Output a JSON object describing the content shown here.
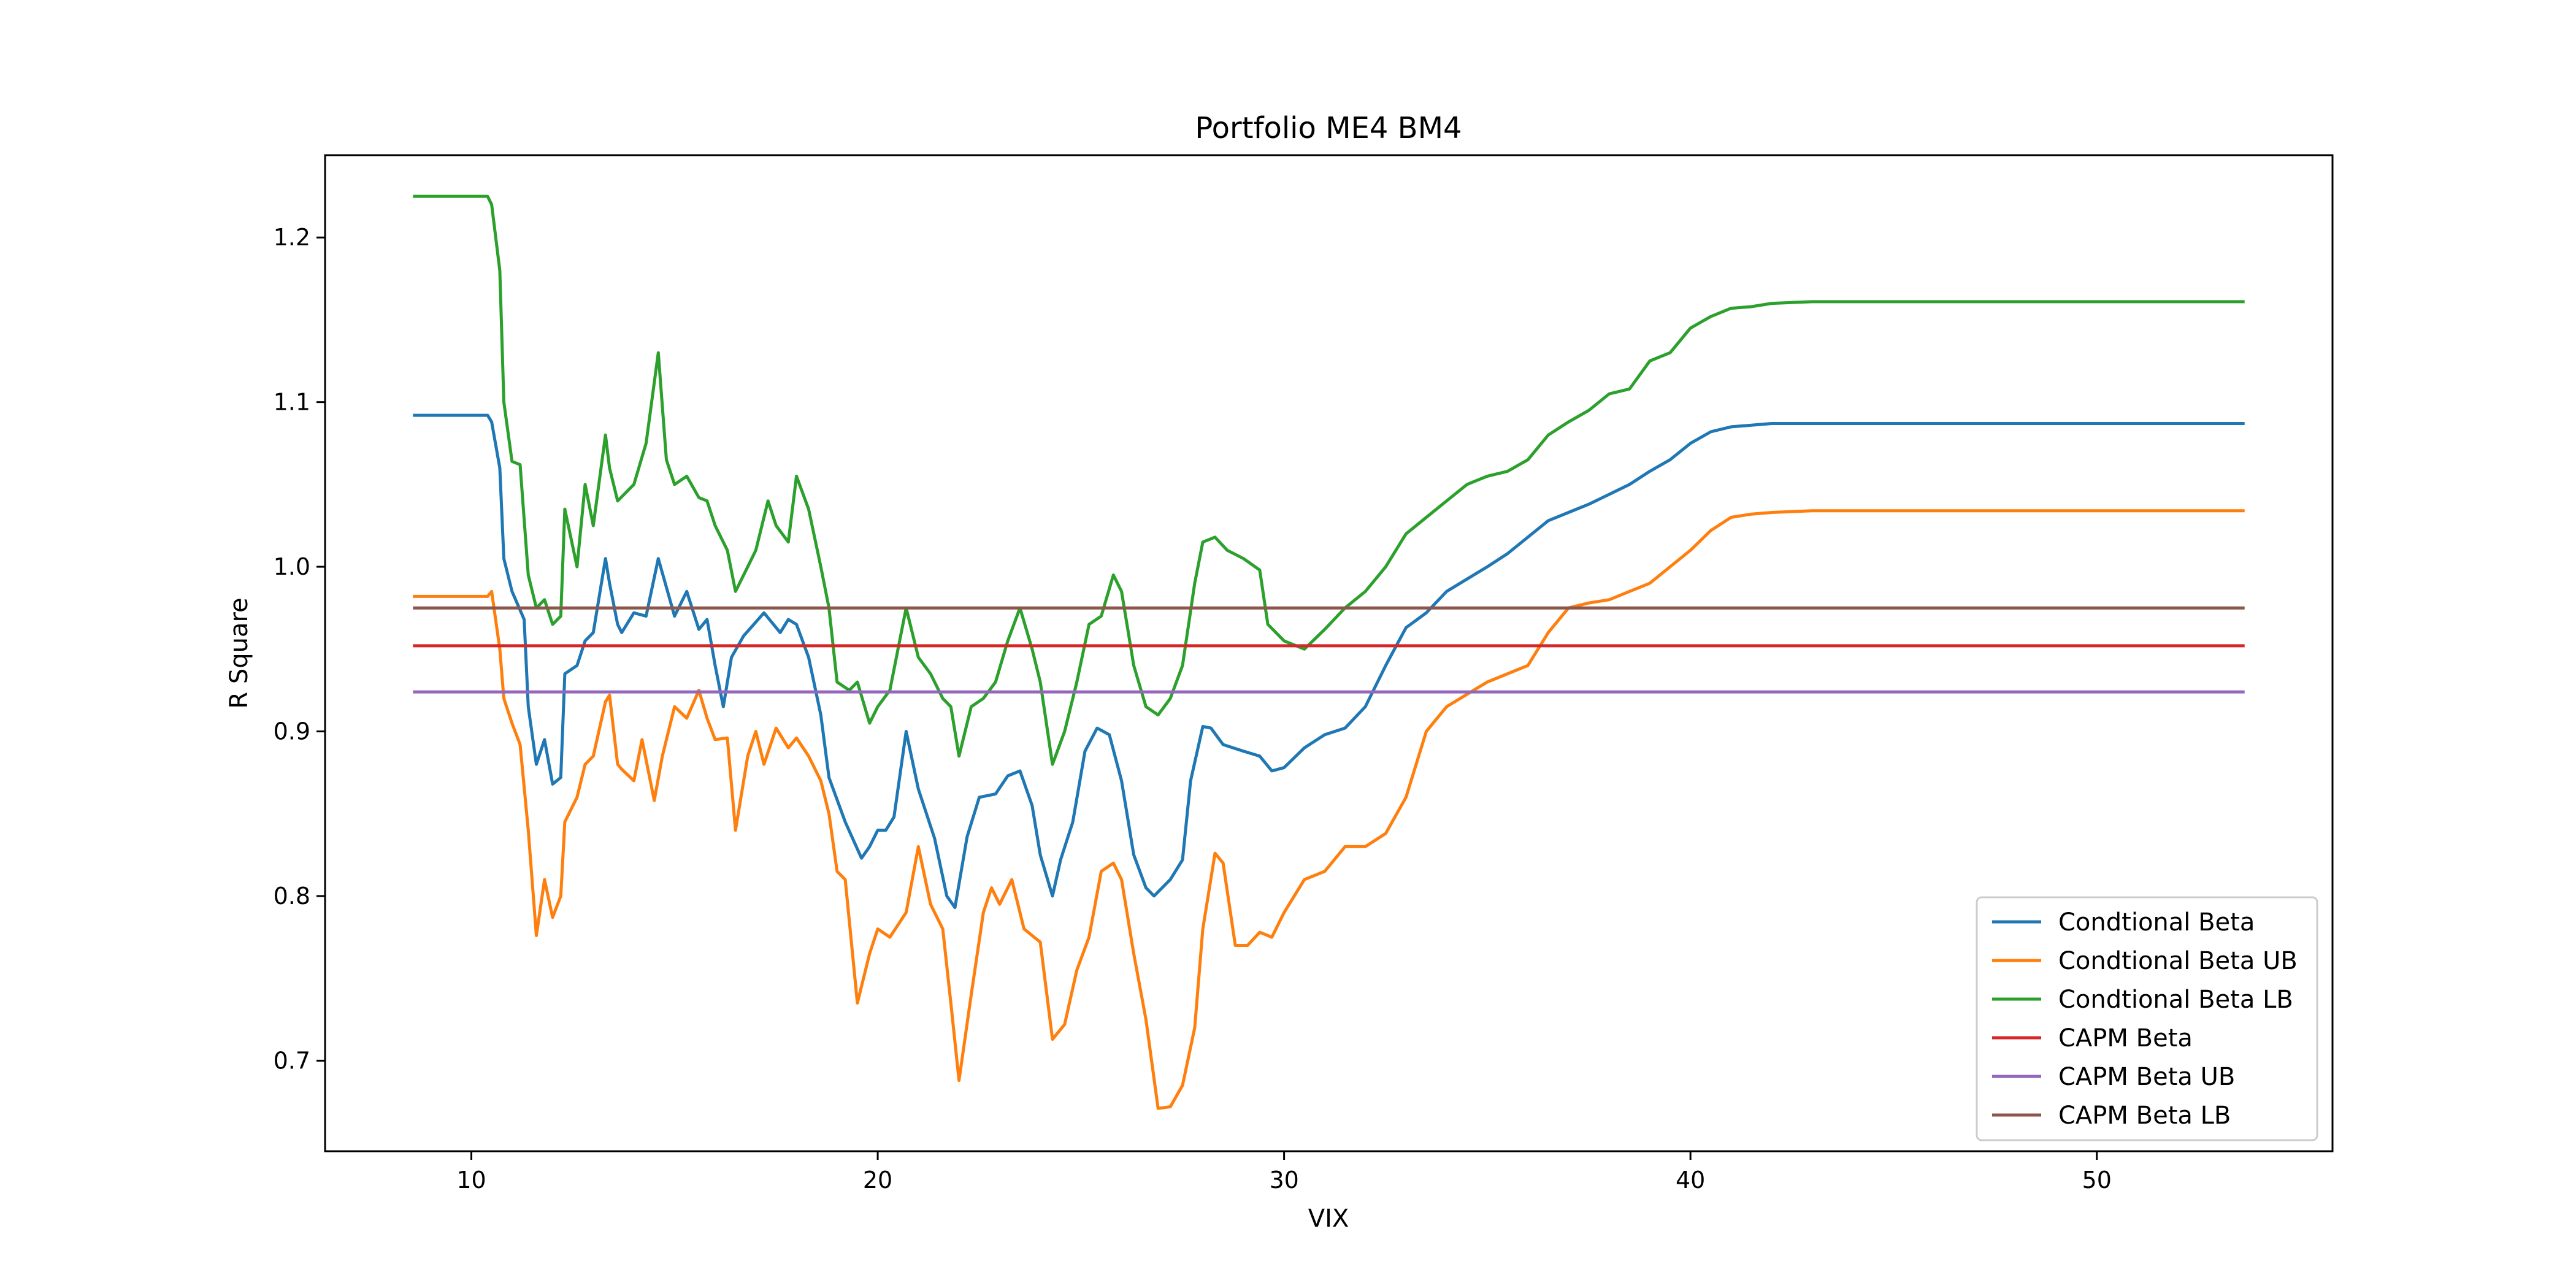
{
  "chart_data": {
    "type": "line",
    "title": "Portfolio ME4 BM4",
    "xlabel": "VIX",
    "ylabel": "R Square",
    "xlim": [
      6.4,
      55.8
    ],
    "ylim": [
      0.645,
      1.25
    ],
    "xticks": [
      10,
      20,
      30,
      40,
      50
    ],
    "yticks": [
      0.7,
      0.8,
      0.9,
      1.0,
      1.1,
      1.2
    ],
    "xtick_labels": [
      "10",
      "20",
      "30",
      "40",
      "50"
    ],
    "ytick_labels": [
      "0.7",
      "0.8",
      "0.9",
      "1.0",
      "1.1",
      "1.2"
    ],
    "grid": false,
    "legend_position": "lower-right",
    "series": [
      {
        "name": "Condtional Beta",
        "color": "#1f77b4",
        "x": [
          8.6,
          9.5,
          10.4,
          10.5,
          10.7,
          10.8,
          11.0,
          11.3,
          11.4,
          11.6,
          11.8,
          12.0,
          12.2,
          12.3,
          12.6,
          12.8,
          13.0,
          13.3,
          13.4,
          13.6,
          13.7,
          14.0,
          14.3,
          14.6,
          15.0,
          15.3,
          15.6,
          15.8,
          16.0,
          16.2,
          16.4,
          16.7,
          17.2,
          17.6,
          17.8,
          18.0,
          18.3,
          18.6,
          18.8,
          19.2,
          19.6,
          19.8,
          20.0,
          20.2,
          20.4,
          20.7,
          21.0,
          21.4,
          21.7,
          21.9,
          22.2,
          22.5,
          22.9,
          23.2,
          23.5,
          23.8,
          24.0,
          24.3,
          24.5,
          24.8,
          25.1,
          25.4,
          25.7,
          26.0,
          26.3,
          26.6,
          26.8,
          27.2,
          27.5,
          27.7,
          28.0,
          28.2,
          28.5,
          29.0,
          29.4,
          29.7,
          30.0,
          30.5,
          31.0,
          31.5,
          32.0,
          32.5,
          33.0,
          33.5,
          34.0,
          35.0,
          35.5,
          36.0,
          36.5,
          37.0,
          37.5,
          38.0,
          38.5,
          39.0,
          39.5,
          40.0,
          40.5,
          41.0,
          41.5,
          42.0,
          43.0,
          45.0,
          50.0,
          53.6
        ],
        "values": [
          1.092,
          1.092,
          1.092,
          1.088,
          1.06,
          1.005,
          0.985,
          0.968,
          0.915,
          0.88,
          0.895,
          0.868,
          0.872,
          0.935,
          0.94,
          0.955,
          0.96,
          1.005,
          0.99,
          0.965,
          0.96,
          0.972,
          0.97,
          1.005,
          0.97,
          0.985,
          0.962,
          0.968,
          0.94,
          0.915,
          0.945,
          0.958,
          0.972,
          0.96,
          0.968,
          0.965,
          0.945,
          0.91,
          0.872,
          0.845,
          0.823,
          0.83,
          0.84,
          0.84,
          0.848,
          0.9,
          0.865,
          0.835,
          0.8,
          0.793,
          0.836,
          0.86,
          0.862,
          0.873,
          0.876,
          0.855,
          0.825,
          0.8,
          0.822,
          0.845,
          0.888,
          0.902,
          0.898,
          0.87,
          0.825,
          0.805,
          0.8,
          0.81,
          0.822,
          0.87,
          0.903,
          0.902,
          0.892,
          0.888,
          0.885,
          0.876,
          0.878,
          0.89,
          0.898,
          0.902,
          0.915,
          0.94,
          0.963,
          0.972,
          0.985,
          1.0,
          1.008,
          1.018,
          1.028,
          1.033,
          1.038,
          1.044,
          1.05,
          1.058,
          1.065,
          1.075,
          1.082,
          1.085,
          1.086,
          1.087,
          1.087,
          1.087,
          1.087,
          1.087
        ]
      },
      {
        "name": "Condtional Beta UB",
        "color": "#ff7f0e",
        "x": [
          8.6,
          9.5,
          10.4,
          10.5,
          10.7,
          10.8,
          11.0,
          11.2,
          11.4,
          11.6,
          11.8,
          12.0,
          12.2,
          12.3,
          12.6,
          12.8,
          13.0,
          13.3,
          13.4,
          13.6,
          13.7,
          14.0,
          14.2,
          14.5,
          14.7,
          15.0,
          15.3,
          15.6,
          15.8,
          16.0,
          16.3,
          16.5,
          16.8,
          17.0,
          17.2,
          17.5,
          17.8,
          18.0,
          18.3,
          18.6,
          18.8,
          19.0,
          19.2,
          19.5,
          19.8,
          20.0,
          20.3,
          20.7,
          21.0,
          21.3,
          21.6,
          21.8,
          22.0,
          22.3,
          22.6,
          22.8,
          23.0,
          23.3,
          23.6,
          24.0,
          24.3,
          24.6,
          24.9,
          25.2,
          25.5,
          25.8,
          26.0,
          26.3,
          26.6,
          26.9,
          27.2,
          27.5,
          27.8,
          28.0,
          28.3,
          28.5,
          28.8,
          29.1,
          29.4,
          29.7,
          30.0,
          30.5,
          31.0,
          31.5,
          32.0,
          32.5,
          33.0,
          33.5,
          34.0,
          35.0,
          36.0,
          36.5,
          37.0,
          37.5,
          38.0,
          38.5,
          39.0,
          39.5,
          40.0,
          40.5,
          41.0,
          41.5,
          42.0,
          43.0,
          45.0,
          50.0,
          53.6
        ],
        "values": [
          0.982,
          0.982,
          0.982,
          0.985,
          0.95,
          0.92,
          0.905,
          0.892,
          0.84,
          0.776,
          0.81,
          0.787,
          0.8,
          0.845,
          0.86,
          0.88,
          0.885,
          0.918,
          0.922,
          0.88,
          0.877,
          0.87,
          0.895,
          0.858,
          0.885,
          0.915,
          0.908,
          0.925,
          0.908,
          0.895,
          0.896,
          0.84,
          0.885,
          0.9,
          0.88,
          0.902,
          0.89,
          0.896,
          0.885,
          0.87,
          0.85,
          0.815,
          0.81,
          0.735,
          0.765,
          0.78,
          0.775,
          0.79,
          0.83,
          0.795,
          0.78,
          0.735,
          0.688,
          0.74,
          0.79,
          0.805,
          0.795,
          0.81,
          0.78,
          0.772,
          0.713,
          0.722,
          0.755,
          0.775,
          0.815,
          0.82,
          0.81,
          0.765,
          0.725,
          0.671,
          0.672,
          0.685,
          0.72,
          0.78,
          0.826,
          0.82,
          0.77,
          0.77,
          0.778,
          0.775,
          0.79,
          0.81,
          0.815,
          0.83,
          0.83,
          0.838,
          0.86,
          0.9,
          0.915,
          0.93,
          0.94,
          0.96,
          0.975,
          0.978,
          0.98,
          0.985,
          0.99,
          1.0,
          1.01,
          1.022,
          1.03,
          1.032,
          1.033,
          1.034,
          1.034,
          1.034,
          1.034
        ]
      },
      {
        "name": "Condtional Beta LB",
        "color": "#2ca02c",
        "x": [
          8.6,
          9.5,
          10.4,
          10.5,
          10.7,
          10.8,
          11.0,
          11.2,
          11.4,
          11.6,
          11.8,
          12.0,
          12.2,
          12.3,
          12.6,
          12.8,
          13.0,
          13.3,
          13.4,
          13.6,
          13.8,
          14.0,
          14.3,
          14.6,
          14.8,
          15.0,
          15.3,
          15.6,
          15.8,
          16.0,
          16.3,
          16.5,
          16.8,
          17.0,
          17.3,
          17.5,
          17.8,
          18.0,
          18.3,
          18.6,
          18.8,
          19.0,
          19.3,
          19.5,
          19.8,
          20.0,
          20.3,
          20.7,
          21.0,
          21.3,
          21.6,
          21.8,
          22.0,
          22.3,
          22.6,
          22.9,
          23.2,
          23.5,
          23.8,
          24.0,
          24.3,
          24.6,
          24.9,
          25.2,
          25.5,
          25.8,
          26.0,
          26.3,
          26.6,
          26.9,
          27.2,
          27.5,
          27.8,
          28.0,
          28.3,
          28.6,
          29.0,
          29.4,
          29.6,
          30.0,
          30.5,
          31.0,
          31.5,
          32.0,
          32.5,
          33.0,
          33.5,
          34.0,
          34.5,
          35.0,
          35.5,
          36.0,
          36.5,
          37.0,
          37.5,
          38.0,
          38.5,
          39.0,
          39.5,
          40.0,
          40.5,
          41.0,
          41.5,
          42.0,
          43.0,
          45.0,
          50.0,
          53.6
        ],
        "values": [
          1.225,
          1.225,
          1.225,
          1.22,
          1.18,
          1.1,
          1.064,
          1.062,
          0.995,
          0.975,
          0.98,
          0.965,
          0.97,
          1.035,
          1.0,
          1.05,
          1.025,
          1.08,
          1.06,
          1.04,
          1.045,
          1.05,
          1.075,
          1.13,
          1.065,
          1.05,
          1.055,
          1.042,
          1.04,
          1.025,
          1.01,
          0.985,
          1.0,
          1.01,
          1.04,
          1.025,
          1.015,
          1.055,
          1.035,
          1.0,
          0.975,
          0.93,
          0.925,
          0.93,
          0.905,
          0.915,
          0.925,
          0.975,
          0.945,
          0.935,
          0.92,
          0.915,
          0.885,
          0.915,
          0.92,
          0.93,
          0.955,
          0.975,
          0.95,
          0.93,
          0.88,
          0.9,
          0.93,
          0.965,
          0.97,
          0.995,
          0.985,
          0.94,
          0.915,
          0.91,
          0.92,
          0.94,
          0.99,
          1.015,
          1.018,
          1.01,
          1.005,
          0.998,
          0.965,
          0.955,
          0.95,
          0.962,
          0.975,
          0.985,
          1.0,
          1.02,
          1.03,
          1.04,
          1.05,
          1.055,
          1.058,
          1.065,
          1.08,
          1.088,
          1.095,
          1.105,
          1.108,
          1.125,
          1.13,
          1.145,
          1.152,
          1.157,
          1.158,
          1.16,
          1.161,
          1.161,
          1.161,
          1.161
        ]
      },
      {
        "name": "CAPM Beta",
        "color": "#d62728",
        "x": [
          8.6,
          53.6
        ],
        "values": [
          0.952,
          0.952
        ]
      },
      {
        "name": "CAPM Beta UB",
        "color": "#9467bd",
        "x": [
          8.6,
          53.6
        ],
        "values": [
          0.924,
          0.924
        ]
      },
      {
        "name": "CAPM Beta LB",
        "color": "#8c564b",
        "x": [
          8.6,
          53.6
        ],
        "values": [
          0.975,
          0.975
        ]
      }
    ]
  }
}
